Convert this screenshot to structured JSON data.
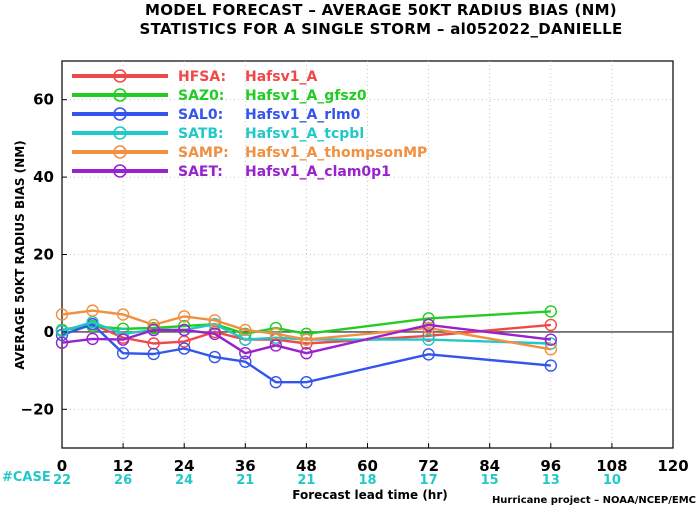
{
  "chart_data": {
    "type": "line",
    "title": "MODEL FORECAST – AVERAGE 50KT RADIUS BIAS (NM)",
    "subtitle": "STATISTICS FOR A SINGLE STORM – al052022_DANIELLE",
    "xlabel": "Forecast lead time (hr)",
    "ylabel": "AVERAGE 50KT RADIUS BIAS (NM)",
    "xlim": [
      0,
      120
    ],
    "ylim": [
      -30,
      70
    ],
    "x_ticks": [
      0,
      12,
      24,
      36,
      48,
      60,
      72,
      84,
      96,
      108,
      120
    ],
    "y_ticks": [
      -20,
      0,
      20,
      40,
      60
    ],
    "x_tick_labels": [
      "0",
      "12",
      "24",
      "36",
      "48",
      "60",
      "72",
      "84",
      "96",
      "108",
      "120"
    ],
    "y_tick_labels": [
      "−20",
      "0",
      "20",
      "40",
      "60"
    ],
    "zero_line": true,
    "grid": true,
    "legend_position": "top-left",
    "case_label": "#CASE",
    "cases": [
      {
        "x": 0,
        "n": "22"
      },
      {
        "x": 12,
        "n": "26"
      },
      {
        "x": 24,
        "n": "24"
      },
      {
        "x": 36,
        "n": "21"
      },
      {
        "x": 48,
        "n": "21"
      },
      {
        "x": 60,
        "n": "18"
      },
      {
        "x": 72,
        "n": "17"
      },
      {
        "x": 84,
        "n": "15"
      },
      {
        "x": 96,
        "n": "13"
      },
      {
        "x": 108,
        "n": "10"
      }
    ],
    "credit": "Hurricane project – NOAA/NCEP/EMC",
    "series": [
      {
        "name": "HFSA:",
        "desc": "Hafsv1_A",
        "color": "#f04848",
        "points": [
          [
            0,
            0.5
          ],
          [
            6,
            2
          ],
          [
            12,
            -1.5
          ],
          [
            18,
            -3
          ],
          [
            24,
            -2.5
          ],
          [
            30,
            0
          ],
          [
            36,
            -2
          ],
          [
            42,
            -2
          ],
          [
            48,
            -3
          ],
          [
            72,
            -1
          ],
          [
            96,
            1.8
          ]
        ]
      },
      {
        "name": "SAZ0:",
        "desc": "Hafsv1_A_gfsz0",
        "color": "#22cc22",
        "points": [
          [
            0,
            0.5
          ],
          [
            6,
            1.5
          ],
          [
            12,
            0.8
          ],
          [
            18,
            1.0
          ],
          [
            24,
            1.5
          ],
          [
            30,
            2.0
          ],
          [
            36,
            -0.5
          ],
          [
            42,
            1.0
          ],
          [
            48,
            -0.5
          ],
          [
            72,
            3.5
          ],
          [
            96,
            5.3
          ]
        ]
      },
      {
        "name": "SAL0:",
        "desc": "Hafsv1_A_rlm0",
        "color": "#3355ee",
        "points": [
          [
            0,
            -0.8
          ],
          [
            6,
            2.0
          ],
          [
            12,
            -5.5
          ],
          [
            18,
            -5.7
          ],
          [
            24,
            -4.3
          ],
          [
            30,
            -6.5
          ],
          [
            36,
            -7.7
          ],
          [
            42,
            -13
          ],
          [
            48,
            -13
          ],
          [
            72,
            -5.8
          ],
          [
            96,
            -8.7
          ]
        ]
      },
      {
        "name": "SATB:",
        "desc": "Hafsv1_A_tcpbl",
        "color": "#22c8c8",
        "points": [
          [
            0,
            0.2
          ],
          [
            6,
            2.5
          ],
          [
            12,
            -0.5
          ],
          [
            18,
            0.5
          ],
          [
            24,
            0.5
          ],
          [
            30,
            2.0
          ],
          [
            36,
            -2.0
          ],
          [
            42,
            -1.5
          ],
          [
            48,
            -2.0
          ],
          [
            72,
            -2.0
          ],
          [
            96,
            -3.0
          ]
        ]
      },
      {
        "name": "SAMP:",
        "desc": "Hafsv1_A_thompsonMP",
        "color": "#f09040",
        "points": [
          [
            0,
            4.5
          ],
          [
            6,
            5.5
          ],
          [
            12,
            4.5
          ],
          [
            18,
            1.8
          ],
          [
            24,
            4.0
          ],
          [
            30,
            3.0
          ],
          [
            36,
            0.5
          ],
          [
            42,
            -0.5
          ],
          [
            48,
            -2.0
          ],
          [
            72,
            1.0
          ],
          [
            96,
            -4.5
          ]
        ]
      },
      {
        "name": "SAET:",
        "desc": "Hafsv1_A_clam0p1",
        "color": "#9922cc",
        "points": [
          [
            0,
            -2.8
          ],
          [
            6,
            -1.8
          ],
          [
            12,
            -2.0
          ],
          [
            18,
            0.5
          ],
          [
            24,
            0.5
          ],
          [
            30,
            -0.5
          ],
          [
            36,
            -5.5
          ],
          [
            42,
            -3.5
          ],
          [
            48,
            -5.5
          ],
          [
            72,
            1.8
          ],
          [
            96,
            -2.0
          ]
        ]
      }
    ]
  }
}
